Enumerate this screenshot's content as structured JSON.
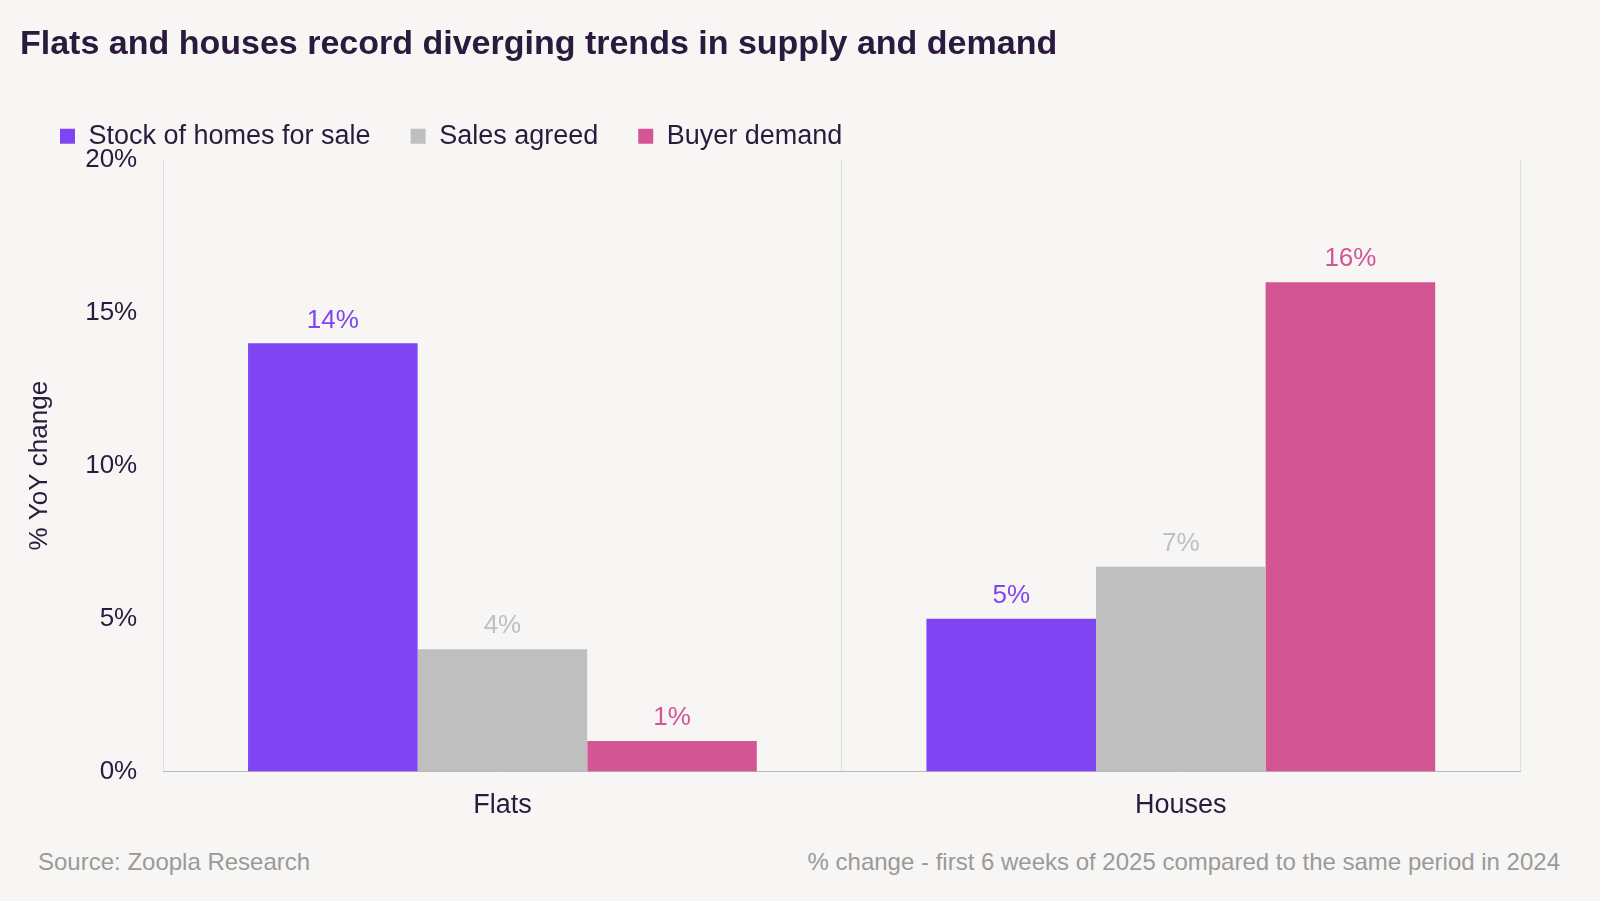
{
  "chart_data": {
    "type": "bar",
    "title": "Flats and houses record diverging trends in supply and demand",
    "y_label": "% YoY change",
    "source": "Source: Zoopla Research",
    "note": "% change - first 6 weeks of 2025 compared to the same period in 2024",
    "categories": [
      "Flats",
      "Houses"
    ],
    "series": [
      {
        "name": "Stock of homes for sale",
        "color": "#8045f2",
        "values": [
          14,
          5
        ],
        "value_labels": [
          "14%",
          "5%"
        ]
      },
      {
        "name": "Sales agreed",
        "color": "#bfbfbf",
        "values": [
          4,
          6.7
        ],
        "value_labels": [
          "4%",
          "7%"
        ]
      },
      {
        "name": "Buyer demand",
        "color": "#d35593",
        "values": [
          1,
          16
        ],
        "value_labels": [
          "1%",
          "16%"
        ]
      }
    ],
    "ylim": [
      0,
      20
    ],
    "yticks": [
      {
        "value": 0,
        "label": "0%"
      },
      {
        "value": 5,
        "label": "5%"
      },
      {
        "value": 10,
        "label": "10%"
      },
      {
        "value": 15,
        "label": "15%"
      },
      {
        "value": 20,
        "label": "20%"
      }
    ],
    "grid": "x",
    "legend": "top",
    "data_labels": true
  }
}
